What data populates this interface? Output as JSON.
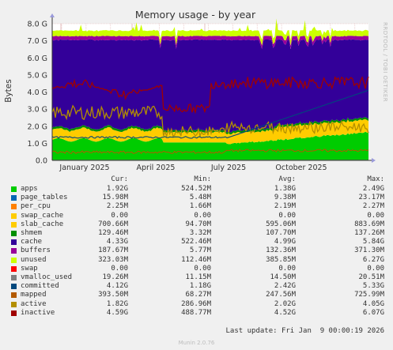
{
  "chart_data": {
    "type": "area",
    "title": "Memory usage - by year",
    "ylabel": "Bytes",
    "y_ticks": [
      "0.0",
      "1.0 G",
      "2.0 G",
      "3.0 G",
      "4.0 G",
      "5.0 G",
      "6.0 G",
      "7.0 G",
      "8.0 G"
    ],
    "ylim": [
      0,
      8.0
    ],
    "x_ticks": [
      "January 2025",
      "April 2025",
      "July 2025",
      "October 2025"
    ],
    "grid": true,
    "side_label": "RRDTOOL / TOBI OETIKER",
    "stack": [
      {
        "name": "apps",
        "color": "#00cc00",
        "approx_level_G": [
          1.2,
          1.6
        ]
      },
      {
        "name": "page_tables",
        "color": "#0066b3",
        "approx_level_G": [
          0.016,
          0.016
        ]
      },
      {
        "name": "per_cpu",
        "color": "#ff8000",
        "approx_level_G": [
          0.002,
          0.002
        ]
      },
      {
        "name": "swap_cache",
        "color": "#ffcc00",
        "approx_level_G": [
          0.0,
          0.0
        ]
      },
      {
        "name": "slab_cache",
        "color": "#ffcc00",
        "approx_level_G": [
          0.6,
          0.7
        ]
      },
      {
        "name": "shmem",
        "color": "#008f00",
        "approx_level_G": [
          0.1,
          0.13
        ]
      },
      {
        "name": "cache",
        "color": "#330099",
        "approx_level_G": [
          4.3,
          5.5
        ]
      },
      {
        "name": "buffers",
        "color": "#990099",
        "approx_level_G": [
          0.18,
          0.3
        ]
      },
      {
        "name": "unused",
        "color": "#ccff00",
        "approx_level_G": [
          0.3,
          0.4
        ]
      }
    ],
    "lines": [
      {
        "name": "vmalloc_used",
        "color": "#808080"
      },
      {
        "name": "committed",
        "color": "#00487d"
      },
      {
        "name": "mapped",
        "color": "#b35a00"
      },
      {
        "name": "active",
        "color": "#b38f00"
      },
      {
        "name": "inactive",
        "color": "#a00000"
      }
    ]
  },
  "legend": {
    "headers": {
      "cur": "Cur:",
      "min": "Min:",
      "avg": "Avg:",
      "max": "Max:"
    },
    "rows": [
      {
        "name": "apps",
        "color": "#00cc00",
        "cur": "1.92G",
        "min": "524.52M",
        "avg": "1.38G",
        "max": "2.49G"
      },
      {
        "name": "page_tables",
        "color": "#0066b3",
        "cur": "15.98M",
        "min": "5.48M",
        "avg": "9.38M",
        "max": "23.17M"
      },
      {
        "name": "per_cpu",
        "color": "#ff8000",
        "cur": "2.25M",
        "min": "1.66M",
        "avg": "2.19M",
        "max": "2.27M"
      },
      {
        "name": "swap_cache",
        "color": "#ffcc00",
        "cur": "0.00",
        "min": "0.00",
        "avg": "0.00",
        "max": "0.00"
      },
      {
        "name": "slab_cache",
        "color": "#ffcc00",
        "cur": "700.66M",
        "min": "94.70M",
        "avg": "595.06M",
        "max": "883.69M"
      },
      {
        "name": "shmem",
        "color": "#008f00",
        "cur": "129.46M",
        "min": "3.32M",
        "avg": "107.70M",
        "max": "137.26M"
      },
      {
        "name": "cache",
        "color": "#330099",
        "cur": "4.33G",
        "min": "522.46M",
        "avg": "4.99G",
        "max": "5.84G"
      },
      {
        "name": "buffers",
        "color": "#990099",
        "cur": "187.67M",
        "min": "5.77M",
        "avg": "132.36M",
        "max": "371.30M"
      },
      {
        "name": "unused",
        "color": "#ccff00",
        "cur": "323.03M",
        "min": "112.46M",
        "avg": "385.85M",
        "max": "6.27G"
      },
      {
        "name": "swap",
        "color": "#ff0000",
        "cur": "0.00",
        "min": "0.00",
        "avg": "0.00",
        "max": "0.00"
      },
      {
        "name": "vmalloc_used",
        "color": "#808080",
        "cur": "19.26M",
        "min": "11.15M",
        "avg": "14.50M",
        "max": "20.51M"
      },
      {
        "name": "committed",
        "color": "#00487d",
        "cur": "4.12G",
        "min": "1.18G",
        "avg": "2.42G",
        "max": "5.33G"
      },
      {
        "name": "mapped",
        "color": "#b35a00",
        "cur": "393.50M",
        "min": "68.27M",
        "avg": "247.56M",
        "max": "725.99M"
      },
      {
        "name": "active",
        "color": "#b38f00",
        "cur": "1.82G",
        "min": "286.96M",
        "avg": "2.02G",
        "max": "4.05G"
      },
      {
        "name": "inactive",
        "color": "#a00000",
        "cur": "4.59G",
        "min": "488.77M",
        "avg": "4.52G",
        "max": "6.07G"
      }
    ]
  },
  "footer": {
    "last_update": "Last update: Fri Jan  9 00:00:19 2026",
    "munin": "Munin 2.0.76"
  }
}
